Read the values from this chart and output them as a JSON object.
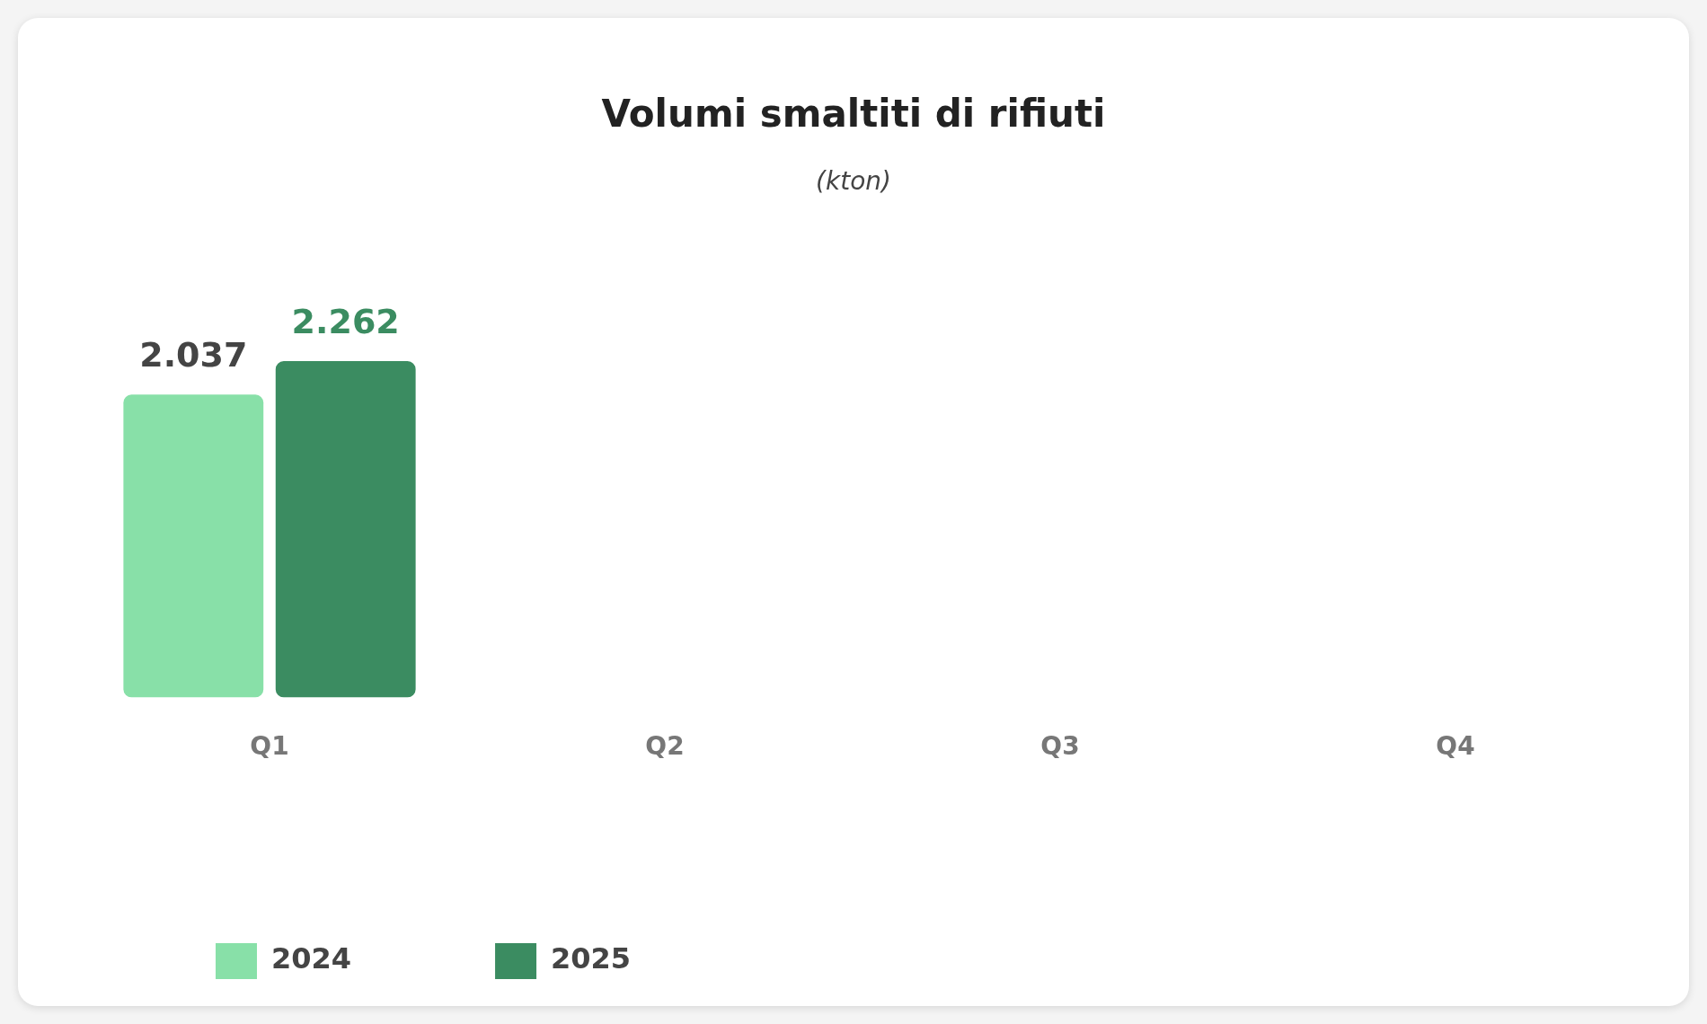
{
  "chart_data": {
    "type": "bar",
    "title": "Volumi smaltiti di rifiuti",
    "subtitle": "(kton)",
    "categories": [
      "Q1",
      "Q2",
      "Q3",
      "Q4"
    ],
    "series": [
      {
        "name": "2024",
        "color": "#88e0a8",
        "values": [
          2037,
          null,
          null,
          null
        ],
        "value_labels": [
          "2.037",
          null,
          null,
          null
        ]
      },
      {
        "name": "2025",
        "color": "#3b8c61",
        "values": [
          2262,
          null,
          null,
          null
        ],
        "value_labels": [
          "2.262",
          null,
          null,
          null
        ]
      }
    ],
    "legend": "bottom left",
    "grid": false,
    "tick_labels": "x"
  }
}
